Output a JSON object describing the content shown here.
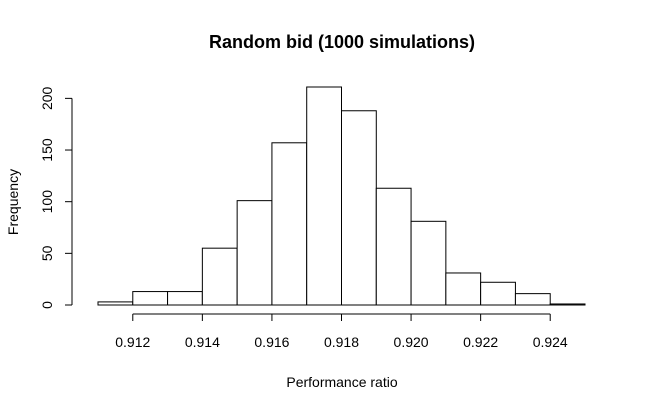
{
  "chart_data": {
    "type": "bar",
    "title": "Random bid (1000 simulations)",
    "xlabel": "Performance ratio",
    "ylabel": "Frequency",
    "bins": [
      {
        "x0": 0.911,
        "x1": 0.912,
        "count": 3
      },
      {
        "x0": 0.912,
        "x1": 0.913,
        "count": 13
      },
      {
        "x0": 0.913,
        "x1": 0.914,
        "count": 13
      },
      {
        "x0": 0.914,
        "x1": 0.915,
        "count": 55
      },
      {
        "x0": 0.915,
        "x1": 0.916,
        "count": 101
      },
      {
        "x0": 0.916,
        "x1": 0.917,
        "count": 157
      },
      {
        "x0": 0.917,
        "x1": 0.918,
        "count": 211
      },
      {
        "x0": 0.918,
        "x1": 0.919,
        "count": 188
      },
      {
        "x0": 0.919,
        "x1": 0.92,
        "count": 113
      },
      {
        "x0": 0.92,
        "x1": 0.921,
        "count": 81
      },
      {
        "x0": 0.921,
        "x1": 0.922,
        "count": 31
      },
      {
        "x0": 0.922,
        "x1": 0.923,
        "count": 22
      },
      {
        "x0": 0.923,
        "x1": 0.924,
        "count": 11
      },
      {
        "x0": 0.924,
        "x1": 0.925,
        "count": 1
      }
    ],
    "xlim": [
      0.911,
      0.925
    ],
    "ylim": [
      0,
      211
    ],
    "xticks": [
      0.912,
      0.914,
      0.916,
      0.918,
      0.92,
      0.922,
      0.924
    ],
    "xtick_labels": [
      "0.912",
      "0.914",
      "0.916",
      "0.918",
      "0.920",
      "0.922",
      "0.924"
    ],
    "yticks": [
      0,
      50,
      100,
      150,
      200
    ],
    "ytick_labels": [
      "0",
      "50",
      "100",
      "150",
      "200"
    ],
    "grid": false,
    "legend": "none"
  }
}
